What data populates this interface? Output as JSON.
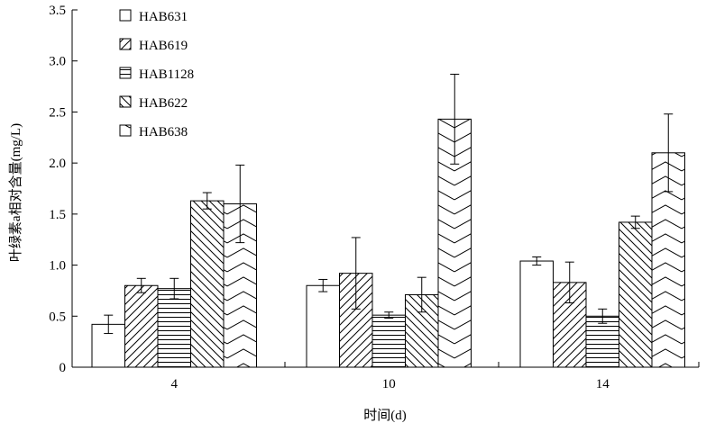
{
  "chart_data": {
    "type": "bar",
    "xlabel": "时间(d)",
    "ylabel": "叶绿素a相对含量(mg/L)",
    "ylim": [
      0,
      3.5
    ],
    "yticks": [
      0,
      0.5,
      1.0,
      1.5,
      2.0,
      2.5,
      3.0,
      3.5
    ],
    "ytick_labels": [
      "0",
      "0.5",
      "1.0",
      "1.5",
      "2.0",
      "2.5",
      "3.0",
      "3.5"
    ],
    "categories": [
      "4",
      "10",
      "14"
    ],
    "error_bars": true,
    "grid": false,
    "legend_position": "top-left",
    "series": [
      {
        "name": "HAB631",
        "pattern": "empty",
        "values": [
          0.42,
          0.8,
          1.04
        ],
        "errors": [
          0.09,
          0.06,
          0.04
        ]
      },
      {
        "name": "HAB619",
        "pattern": "diagonal-up",
        "values": [
          0.8,
          0.92,
          0.83
        ],
        "errors": [
          0.07,
          0.35,
          0.2
        ]
      },
      {
        "name": "HAB1128",
        "pattern": "horizontal",
        "values": [
          0.77,
          0.51,
          0.5
        ],
        "errors": [
          0.1,
          0.03,
          0.07
        ]
      },
      {
        "name": "HAB622",
        "pattern": "diagonal-down",
        "values": [
          1.63,
          0.71,
          1.42
        ],
        "errors": [
          0.08,
          0.17,
          0.06
        ]
      },
      {
        "name": "HAB638",
        "pattern": "chevron",
        "values": [
          1.6,
          2.43,
          2.1
        ],
        "errors": [
          0.38,
          0.44,
          0.38
        ]
      }
    ]
  }
}
